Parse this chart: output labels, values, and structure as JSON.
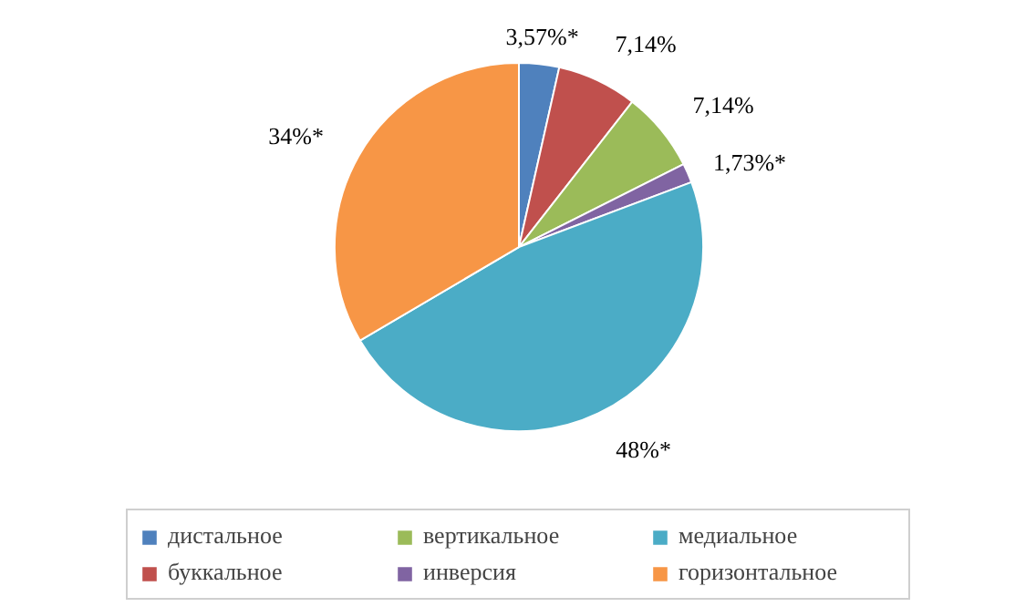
{
  "chart_data": {
    "type": "pie",
    "categories": [
      "дистальное",
      "буккальное",
      "вертикальное",
      "инверсия",
      "медиальное",
      "горизонтальное"
    ],
    "values": [
      3.57,
      7.14,
      7.14,
      1.73,
      48,
      34
    ],
    "colors": [
      "#4f81bd",
      "#c0504d",
      "#9bbb59",
      "#8064a2",
      "#4bacc6",
      "#f79646"
    ],
    "value_labels": [
      "3,57%*",
      "7,14%",
      "7,14%",
      "1,73%*",
      "48%*",
      "34%*"
    ],
    "legend": "bottom"
  }
}
